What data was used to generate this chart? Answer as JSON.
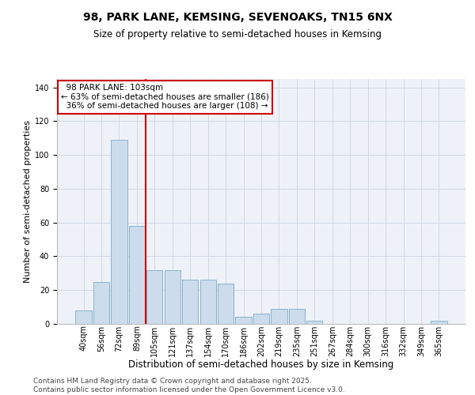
{
  "title1": "98, PARK LANE, KEMSING, SEVENOAKS, TN15 6NX",
  "title2": "Size of property relative to semi-detached houses in Kemsing",
  "xlabel": "Distribution of semi-detached houses by size in Kemsing",
  "ylabel": "Number of semi-detached properties",
  "categories": [
    "40sqm",
    "56sqm",
    "72sqm",
    "89sqm",
    "105sqm",
    "121sqm",
    "137sqm",
    "154sqm",
    "170sqm",
    "186sqm",
    "202sqm",
    "219sqm",
    "235sqm",
    "251sqm",
    "267sqm",
    "284sqm",
    "300sqm",
    "316sqm",
    "332sqm",
    "349sqm",
    "365sqm"
  ],
  "values": [
    8,
    25,
    109,
    58,
    32,
    32,
    26,
    26,
    24,
    4,
    6,
    9,
    9,
    2,
    0,
    0,
    0,
    0,
    0,
    0,
    2
  ],
  "bar_color": "#ccdcec",
  "bar_edge_color": "#7aaac8",
  "property_bin_index": 4,
  "property_label": "98 PARK LANE: 103sqm",
  "pct_smaller": 63,
  "count_smaller": 186,
  "pct_larger": 36,
  "count_larger": 108,
  "annotation_box_color": "#cc0000",
  "vline_color": "#cc0000",
  "grid_color": "#d0d8e4",
  "bg_color": "#eef2f8",
  "footer1": "Contains HM Land Registry data © Crown copyright and database right 2025.",
  "footer2": "Contains public sector information licensed under the Open Government Licence v3.0.",
  "ylim": [
    0,
    145
  ],
  "title1_fontsize": 10,
  "title2_fontsize": 8.5,
  "xlabel_fontsize": 8.5,
  "ylabel_fontsize": 8,
  "tick_fontsize": 7,
  "footer_fontsize": 6.5,
  "ann_fontsize": 7.5
}
